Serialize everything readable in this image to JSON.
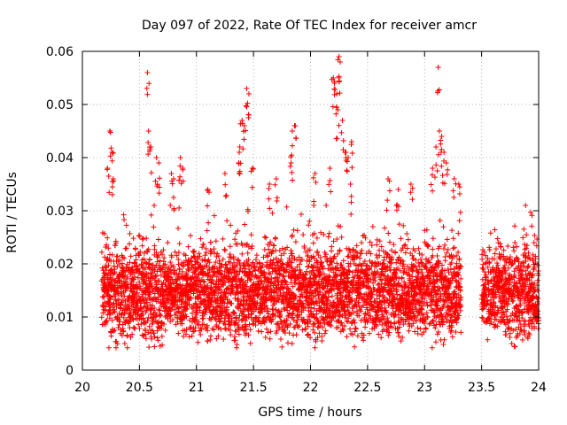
{
  "chart_data": {
    "type": "scatter",
    "title": "Day 097 of 2022, Rate Of TEC Index for receiver amcr",
    "xlabel": "GPS time / hours",
    "ylabel": "ROTI / TECUs",
    "xlim": [
      20,
      24
    ],
    "ylim": [
      0,
      0.06
    ],
    "x_ticks": [
      20,
      20.5,
      21,
      21.5,
      22,
      22.5,
      23,
      23.5,
      24
    ],
    "x_tick_labels": [
      "20",
      "20.5",
      "21",
      "21.5",
      "22",
      "22.5",
      "23",
      "23.5",
      "24"
    ],
    "y_ticks": [
      0,
      0.01,
      0.02,
      0.03,
      0.04,
      0.05,
      0.06
    ],
    "y_tick_labels": [
      "0",
      "0.01",
      "0.02",
      "0.03",
      "0.04",
      "0.05",
      "0.06"
    ],
    "grid": true,
    "marker": "plus",
    "series": [
      {
        "color": "#ff0000",
        "x_start": 20.17,
        "x_end": 24.0,
        "x_step": 0.00417,
        "gap": [
          23.32,
          23.5
        ],
        "peak_points": [
          [
            20.24,
            0.045
          ],
          [
            20.26,
            0.041
          ],
          [
            20.22,
            0.038
          ],
          [
            20.27,
            0.036
          ],
          [
            20.57,
            0.056
          ],
          [
            20.58,
            0.045
          ],
          [
            20.6,
            0.042
          ],
          [
            20.65,
            0.04
          ],
          [
            20.67,
            0.039
          ],
          [
            20.78,
            0.037
          ],
          [
            20.8,
            0.036
          ],
          [
            20.86,
            0.04
          ],
          [
            20.88,
            0.038
          ],
          [
            21.1,
            0.034
          ],
          [
            21.25,
            0.037
          ],
          [
            21.37,
            0.039
          ],
          [
            21.38,
            0.042
          ],
          [
            21.4,
            0.047
          ],
          [
            21.42,
            0.046
          ],
          [
            21.44,
            0.053
          ],
          [
            21.46,
            0.052
          ],
          [
            21.49,
            0.038
          ],
          [
            21.64,
            0.035
          ],
          [
            21.7,
            0.036
          ],
          [
            21.84,
            0.045
          ],
          [
            21.86,
            0.046
          ],
          [
            21.83,
            0.039
          ],
          [
            22.04,
            0.037
          ],
          [
            22.17,
            0.038
          ],
          [
            22.2,
            0.055
          ],
          [
            22.21,
            0.054
          ],
          [
            22.23,
            0.052
          ],
          [
            22.24,
            0.049
          ],
          [
            22.25,
            0.059
          ],
          [
            22.26,
            0.058
          ],
          [
            22.28,
            0.047
          ],
          [
            22.31,
            0.041
          ],
          [
            22.33,
            0.04
          ],
          [
            22.36,
            0.043
          ],
          [
            22.35,
            0.035
          ],
          [
            22.68,
            0.036
          ],
          [
            22.77,
            0.034
          ],
          [
            22.88,
            0.035
          ],
          [
            23.07,
            0.038
          ],
          [
            23.1,
            0.042
          ],
          [
            23.12,
            0.057
          ],
          [
            23.13,
            0.045
          ],
          [
            23.15,
            0.044
          ],
          [
            23.17,
            0.041
          ],
          [
            23.19,
            0.039
          ],
          [
            23.26,
            0.036
          ],
          [
            23.3,
            0.035
          ]
        ]
      }
    ]
  }
}
